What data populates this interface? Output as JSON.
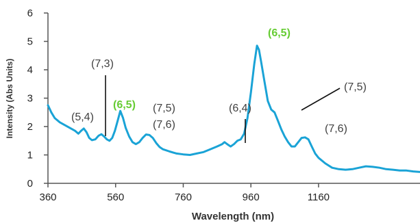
{
  "chart_data": {
    "type": "line",
    "title": "",
    "xlabel": "Wavelength (nm)",
    "ylabel": "Intensity (Abs Units)",
    "xlim": [
      360,
      1460
    ],
    "ylim": [
      0,
      6
    ],
    "x_ticks": [
      360,
      560,
      760,
      960,
      1160
    ],
    "y_ticks": [
      0,
      1,
      2,
      3,
      4,
      5,
      6
    ],
    "x_tick_labels": [
      "360",
      "560",
      "760",
      "960",
      "1160"
    ],
    "y_tick_labels": [
      "0",
      "1",
      "2",
      "3",
      "4",
      "5",
      "6"
    ],
    "grid": false,
    "legend": "none",
    "colors": {
      "line": "#1aa3d6",
      "accent": "#66cc33",
      "annotation": "#404040"
    },
    "series": [
      {
        "x": [
          360,
          370,
          380,
          395,
          410,
          425,
          440,
          450,
          458,
          466,
          474,
          482,
          490,
          500,
          510,
          518,
          526,
          534,
          542,
          550,
          558,
          566,
          574,
          582,
          590,
          600,
          610,
          620,
          630,
          640,
          650,
          660,
          670,
          680,
          690,
          700,
          720,
          740,
          760,
          780,
          800,
          820,
          840,
          860,
          875,
          882,
          890,
          900,
          910,
          920,
          930,
          940,
          950,
          960,
          970,
          978,
          984,
          990,
          1000,
          1010,
          1020,
          1030,
          1040,
          1050,
          1060,
          1070,
          1080,
          1090,
          1100,
          1110,
          1120,
          1130,
          1140,
          1150,
          1160,
          1180,
          1200,
          1220,
          1240,
          1260,
          1280,
          1300,
          1320,
          1340,
          1360,
          1380,
          1400,
          1420,
          1440,
          1460
        ],
        "y": [
          2.75,
          2.5,
          2.3,
          2.15,
          2.05,
          1.95,
          1.85,
          1.75,
          1.85,
          1.93,
          1.8,
          1.6,
          1.52,
          1.55,
          1.68,
          1.73,
          1.65,
          1.55,
          1.5,
          1.6,
          1.85,
          2.2,
          2.55,
          2.3,
          1.95,
          1.65,
          1.45,
          1.38,
          1.45,
          1.6,
          1.72,
          1.7,
          1.6,
          1.42,
          1.28,
          1.2,
          1.12,
          1.05,
          1.02,
          1.0,
          1.05,
          1.1,
          1.2,
          1.3,
          1.38,
          1.45,
          1.38,
          1.3,
          1.38,
          1.5,
          1.55,
          1.75,
          2.3,
          3.2,
          4.2,
          4.85,
          4.7,
          4.3,
          3.6,
          2.9,
          2.6,
          2.5,
          2.2,
          1.9,
          1.65,
          1.45,
          1.3,
          1.3,
          1.45,
          1.6,
          1.62,
          1.55,
          1.3,
          1.05,
          0.9,
          0.7,
          0.55,
          0.5,
          0.48,
          0.5,
          0.55,
          0.6,
          0.58,
          0.55,
          0.5,
          0.48,
          0.45,
          0.45,
          0.42,
          0.4
        ]
      }
    ],
    "annotations": [
      {
        "text": "(5,4)",
        "color": "gray"
      },
      {
        "text": "(7,3)",
        "color": "gray"
      },
      {
        "text": "(6,5)",
        "color": "green"
      },
      {
        "text": "(7,5)",
        "color": "gray"
      },
      {
        "text": "(7,6)",
        "color": "gray"
      },
      {
        "text": "(6,4)",
        "color": "gray"
      },
      {
        "text": "(6,5)",
        "color": "green"
      },
      {
        "text": "(7,5)",
        "color": "gray"
      },
      {
        "text": "(7,6)",
        "color": "gray"
      }
    ]
  }
}
